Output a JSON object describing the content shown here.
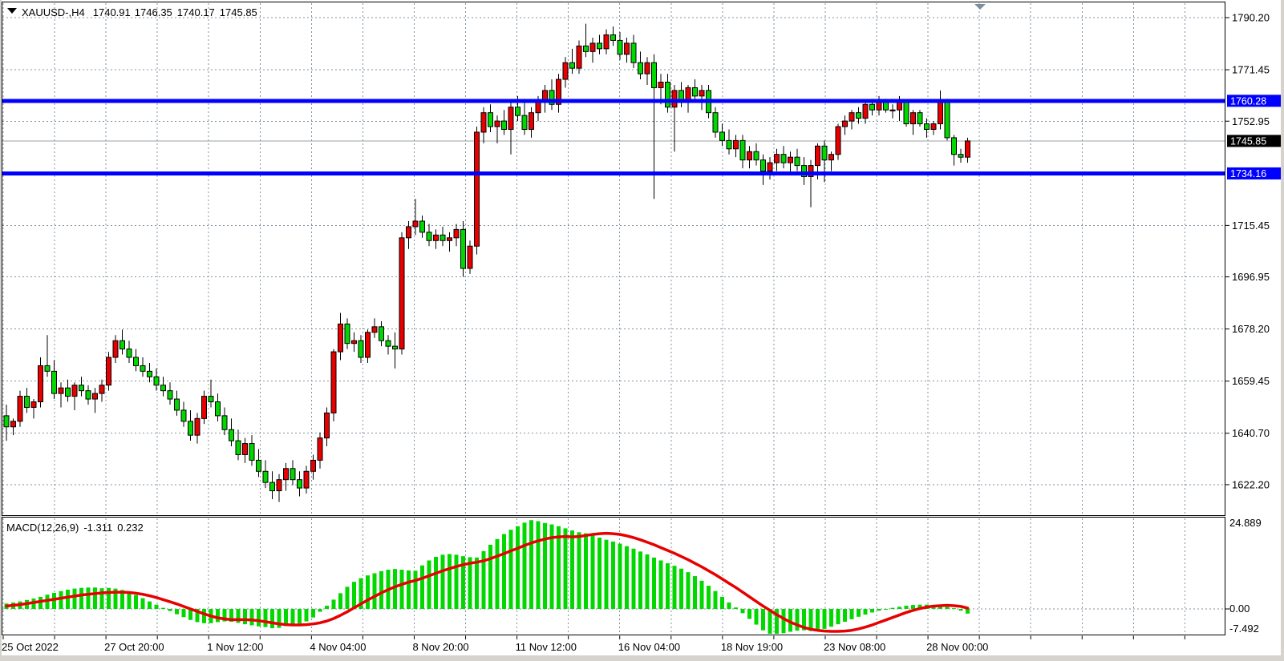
{
  "title": {
    "symbol": "XAUUSD-,H4",
    "open": "1740.91",
    "high": "1746.35",
    "low": "1740.17",
    "close": "1745.85"
  },
  "macd_label": {
    "name": "MACD(12,26,9)",
    "macd": "-1.311",
    "signal": "0.232"
  },
  "colors": {
    "bull": "#e80000",
    "bear": "#00d800",
    "wick": "#000000",
    "grid": "#8292a2",
    "hline": "#0000ff",
    "signal_line": "#e80000",
    "histogram": "#00d800",
    "current_line": "#9aa0a6",
    "badge_line_bg": "#0000ff",
    "badge_current_bg": "#000000",
    "border": "#000000",
    "chrome": "#d6d3ce",
    "shift_marker": "#7d8d9c"
  },
  "chart_data": {
    "type": "candlestick",
    "symbol": "XAUUSD-",
    "timeframe": "H4",
    "current_bar": {
      "open": 1740.91,
      "high": 1746.35,
      "low": 1740.17,
      "close": 1745.85
    },
    "y_axis_ticks": [
      "1790.20",
      "1771.45",
      "1752.95",
      "1715.45",
      "1696.95",
      "1678.20",
      "1659.45",
      "1640.70",
      "1622.20"
    ],
    "x_axis_labels": [
      "25 Oct 2022",
      "27 Oct 20:00",
      "1 Nov 12:00",
      "4 Nov 04:00",
      "8 Nov 20:00",
      "11 Nov 12:00",
      "16 Nov 04:00",
      "18 Nov 19:00",
      "23 Nov 08:00",
      "28 Nov 00:00"
    ],
    "horizontal_lines": [
      {
        "price": 1760.28,
        "label": "1760.28"
      },
      {
        "price": 1734.16,
        "label": "1734.16"
      }
    ],
    "current_price": {
      "price": 1745.85,
      "label": "1745.85"
    },
    "ylim": [
      1613,
      1793
    ],
    "grid": true,
    "candles": [
      [
        1647,
        1651,
        1638,
        1643
      ],
      [
        1643,
        1646,
        1640,
        1645
      ],
      [
        1645,
        1656,
        1643,
        1654
      ],
      [
        1654,
        1657,
        1648,
        1650
      ],
      [
        1650,
        1653,
        1646,
        1652
      ],
      [
        1652,
        1668,
        1650,
        1665
      ],
      [
        1665,
        1676,
        1661,
        1663
      ],
      [
        1663,
        1667,
        1653,
        1655
      ],
      [
        1655,
        1659,
        1650,
        1657
      ],
      [
        1657,
        1660,
        1652,
        1654
      ],
      [
        1654,
        1659,
        1649,
        1658
      ],
      [
        1658,
        1661,
        1654,
        1656
      ],
      [
        1656,
        1658,
        1651,
        1653
      ],
      [
        1653,
        1657,
        1648,
        1655
      ],
      [
        1655,
        1660,
        1652,
        1658
      ],
      [
        1658,
        1670,
        1656,
        1668
      ],
      [
        1668,
        1676,
        1666,
        1674
      ],
      [
        1674,
        1678,
        1669,
        1671
      ],
      [
        1671,
        1674,
        1666,
        1668
      ],
      [
        1668,
        1671,
        1663,
        1665
      ],
      [
        1665,
        1668,
        1661,
        1663
      ],
      [
        1663,
        1666,
        1659,
        1661
      ],
      [
        1661,
        1664,
        1656,
        1658
      ],
      [
        1658,
        1661,
        1654,
        1656
      ],
      [
        1656,
        1659,
        1651,
        1653
      ],
      [
        1653,
        1656,
        1647,
        1649
      ],
      [
        1649,
        1652,
        1643,
        1645
      ],
      [
        1645,
        1649,
        1638,
        1640
      ],
      [
        1640,
        1648,
        1637,
        1646
      ],
      [
        1646,
        1656,
        1644,
        1654
      ],
      [
        1654,
        1660,
        1650,
        1652
      ],
      [
        1652,
        1655,
        1645,
        1647
      ],
      [
        1647,
        1650,
        1640,
        1642
      ],
      [
        1642,
        1646,
        1636,
        1638
      ],
      [
        1638,
        1642,
        1631,
        1633
      ],
      [
        1633,
        1639,
        1630,
        1637
      ],
      [
        1637,
        1640,
        1629,
        1631
      ],
      [
        1631,
        1635,
        1625,
        1627
      ],
      [
        1627,
        1631,
        1621,
        1623
      ],
      [
        1623,
        1627,
        1617,
        1620
      ],
      [
        1620,
        1626,
        1616,
        1624
      ],
      [
        1624,
        1630,
        1620,
        1628
      ],
      [
        1628,
        1631,
        1622,
        1624
      ],
      [
        1624,
        1627,
        1618,
        1621
      ],
      [
        1621,
        1629,
        1619,
        1627
      ],
      [
        1627,
        1633,
        1624,
        1631
      ],
      [
        1631,
        1641,
        1628,
        1639
      ],
      [
        1639,
        1650,
        1636,
        1648
      ],
      [
        1648,
        1671,
        1645,
        1670
      ],
      [
        1670,
        1684,
        1667,
        1680
      ],
      [
        1680,
        1682,
        1671,
        1673
      ],
      [
        1673,
        1677,
        1670,
        1674
      ],
      [
        1674,
        1676,
        1666,
        1668
      ],
      [
        1668,
        1678,
        1666,
        1677
      ],
      [
        1677,
        1682,
        1675,
        1679
      ],
      [
        1679,
        1681,
        1672,
        1674
      ],
      [
        1674,
        1676,
        1669,
        1672
      ],
      [
        1672,
        1677,
        1664,
        1671
      ],
      [
        1671,
        1713,
        1669,
        1711
      ],
      [
        1711,
        1717,
        1707,
        1715
      ],
      [
        1715,
        1725,
        1712,
        1717
      ],
      [
        1717,
        1719,
        1711,
        1713
      ],
      [
        1713,
        1716,
        1708,
        1710
      ],
      [
        1710,
        1714,
        1707,
        1712
      ],
      [
        1712,
        1715,
        1708,
        1710
      ],
      [
        1710,
        1713,
        1706,
        1711
      ],
      [
        1711,
        1716,
        1708,
        1714
      ],
      [
        1714,
        1717,
        1697,
        1700
      ],
      [
        1700,
        1710,
        1698,
        1708
      ],
      [
        1708,
        1751,
        1705,
        1749
      ],
      [
        1749,
        1758,
        1745,
        1756
      ],
      [
        1756,
        1759,
        1749,
        1751
      ],
      [
        1751,
        1755,
        1745,
        1753
      ],
      [
        1753,
        1757,
        1748,
        1750
      ],
      [
        1750,
        1760,
        1741,
        1758
      ],
      [
        1758,
        1762,
        1753,
        1755
      ],
      [
        1755,
        1761,
        1748,
        1750
      ],
      [
        1750,
        1758,
        1747,
        1756
      ],
      [
        1756,
        1762,
        1753,
        1760
      ],
      [
        1760,
        1766,
        1756,
        1764
      ],
      [
        1764,
        1768,
        1757,
        1759
      ],
      [
        1759,
        1770,
        1756,
        1768
      ],
      [
        1768,
        1776,
        1765,
        1774
      ],
      [
        1774,
        1779,
        1770,
        1772
      ],
      [
        1772,
        1782,
        1770,
        1780
      ],
      [
        1780,
        1788,
        1776,
        1778
      ],
      [
        1778,
        1783,
        1774,
        1781
      ],
      [
        1781,
        1784,
        1777,
        1779
      ],
      [
        1779,
        1786,
        1777,
        1784
      ],
      [
        1784,
        1787,
        1780,
        1782
      ],
      [
        1782,
        1785,
        1775,
        1777
      ],
      [
        1777,
        1783,
        1774,
        1781
      ],
      [
        1781,
        1784,
        1772,
        1774
      ],
      [
        1774,
        1778,
        1768,
        1770
      ],
      [
        1770,
        1776,
        1766,
        1774
      ],
      [
        1774,
        1777,
        1725,
        1765
      ],
      [
        1765,
        1770,
        1759,
        1767
      ],
      [
        1767,
        1770,
        1756,
        1758
      ],
      [
        1758,
        1766,
        1742,
        1764
      ],
      [
        1764,
        1767,
        1758,
        1760
      ],
      [
        1760,
        1766,
        1756,
        1765
      ],
      [
        1765,
        1768,
        1760,
        1762
      ],
      [
        1762,
        1766,
        1757,
        1764
      ],
      [
        1764,
        1766,
        1754,
        1756
      ],
      [
        1756,
        1758,
        1747,
        1749
      ],
      [
        1749,
        1752,
        1744,
        1746
      ],
      [
        1746,
        1750,
        1741,
        1743
      ],
      [
        1743,
        1748,
        1740,
        1746
      ],
      [
        1746,
        1748,
        1736,
        1739
      ],
      [
        1739,
        1744,
        1736,
        1742
      ],
      [
        1742,
        1745,
        1737,
        1739
      ],
      [
        1739,
        1741,
        1730,
        1735
      ],
      [
        1735,
        1740,
        1732,
        1738
      ],
      [
        1738,
        1743,
        1735,
        1741
      ],
      [
        1741,
        1744,
        1736,
        1738
      ],
      [
        1738,
        1742,
        1734,
        1740
      ],
      [
        1740,
        1743,
        1735,
        1737
      ],
      [
        1737,
        1740,
        1730,
        1733
      ],
      [
        1733,
        1739,
        1722,
        1737
      ],
      [
        1737,
        1745,
        1732,
        1744
      ],
      [
        1744,
        1746,
        1731,
        1739
      ],
      [
        1739,
        1742,
        1735,
        1741
      ],
      [
        1741,
        1752,
        1739,
        1751
      ],
      [
        1751,
        1755,
        1748,
        1753
      ],
      [
        1753,
        1757,
        1750,
        1756
      ],
      [
        1756,
        1758,
        1752,
        1754
      ],
      [
        1754,
        1760,
        1752,
        1759
      ],
      [
        1759,
        1761,
        1755,
        1757
      ],
      [
        1757,
        1762,
        1755,
        1760
      ],
      [
        1760,
        1761,
        1756,
        1757
      ],
      [
        1757,
        1759,
        1754,
        1757
      ],
      [
        1757,
        1762,
        1753,
        1760
      ],
      [
        1760,
        1760,
        1751,
        1752
      ],
      [
        1752,
        1757,
        1748,
        1756
      ],
      [
        1756,
        1757,
        1751,
        1752
      ],
      [
        1752,
        1754,
        1747,
        1750
      ],
      [
        1750,
        1753,
        1748,
        1752
      ],
      [
        1752,
        1764,
        1750,
        1760
      ],
      [
        1760,
        1761,
        1746,
        1747
      ],
      [
        1747,
        1748,
        1737,
        1741
      ],
      [
        1741,
        1743,
        1738,
        1740
      ],
      [
        1740,
        1747,
        1738,
        1745.85
      ]
    ],
    "macd": {
      "label": "MACD(12,26,9)",
      "macd_value": -1.311,
      "signal_value": 0.232,
      "scale_max_label": "24.889",
      "scale_zero_label": "0.00",
      "scale_min_label": "-7.492",
      "histogram": [
        1.5,
        1.8,
        2.1,
        2.5,
        2.9,
        3.4,
        4.0,
        4.5,
        5.0,
        5.4,
        5.7,
        5.9,
        6.0,
        6.0,
        5.8,
        5.9,
        5.7,
        5.3,
        4.7,
        3.9,
        3.0,
        2.1,
        1.2,
        0.3,
        -0.6,
        -1.5,
        -2.3,
        -3.1,
        -3.7,
        -4.0,
        -4.0,
        -3.7,
        -3.5,
        -3.6,
        -3.9,
        -4.3,
        -4.6,
        -4.9,
        -5.1,
        -5.4,
        -5.3,
        -4.8,
        -4.4,
        -4.1,
        -3.5,
        -2.4,
        -0.8,
        0.9,
        2.6,
        4.4,
        6.2,
        7.6,
        8.6,
        9.4,
        10.0,
        10.6,
        11.0,
        11.2,
        11.0,
        10.8,
        10.7,
        12.2,
        13.6,
        14.6,
        15.2,
        15.4,
        15.2,
        14.8,
        14.5,
        14.4,
        16.2,
        18.0,
        19.6,
        21.0,
        22.2,
        23.2,
        24.2,
        24.889,
        24.6,
        24.1,
        23.7,
        23.2,
        22.6,
        22.0,
        21.5,
        21.2,
        20.6,
        20.0,
        19.4,
        18.9,
        18.3,
        17.6,
        16.9,
        16.1,
        15.3,
        14.4,
        13.6,
        12.8,
        12.1,
        11.3,
        10.3,
        9.2,
        7.9,
        6.5,
        5.0,
        3.4,
        1.8,
        0.4,
        -1.2,
        -2.8,
        -4.4,
        -6.0,
        -7.492,
        -7.3,
        -6.8,
        -6.4,
        -6.1,
        -6.0,
        -6.2,
        -6.0,
        -5.6,
        -5.0,
        -4.3,
        -3.6,
        -2.9,
        -2.2,
        -1.6,
        -1.0,
        -0.5,
        -0.1,
        0.3,
        0.6,
        0.9,
        1.1,
        1.2,
        1.2,
        1.1,
        0.9,
        0.6,
        0.2,
        -0.5,
        -1.311
      ],
      "signal": [
        0.8,
        1.0,
        1.2,
        1.5,
        1.8,
        2.1,
        2.4,
        2.7,
        3.0,
        3.3,
        3.6,
        3.9,
        4.1,
        4.3,
        4.5,
        4.6,
        4.7,
        4.7,
        4.6,
        4.4,
        4.1,
        3.7,
        3.2,
        2.6,
        2.0,
        1.4,
        0.7,
        0.0,
        -0.7,
        -1.4,
        -2.0,
        -2.5,
        -2.8,
        -3.0,
        -3.0,
        -3.0,
        -3.1,
        -3.3,
        -3.6,
        -3.9,
        -4.2,
        -4.4,
        -4.5,
        -4.5,
        -4.4,
        -4.2,
        -3.9,
        -3.4,
        -2.7,
        -1.8,
        -0.8,
        0.3,
        1.4,
        2.5,
        3.5,
        4.5,
        5.4,
        6.2,
        6.9,
        7.5,
        8.0,
        8.6,
        9.3,
        10.0,
        10.7,
        11.3,
        11.9,
        12.4,
        12.8,
        13.1,
        13.5,
        14.1,
        14.8,
        15.5,
        16.3,
        17.0,
        17.8,
        18.5,
        19.1,
        19.6,
        20.0,
        20.2,
        20.3,
        20.2,
        20.3,
        20.6,
        20.9,
        21.1,
        21.2,
        21.1,
        20.9,
        20.5,
        20.0,
        19.4,
        18.7,
        18.0,
        17.2,
        16.4,
        15.6,
        14.7,
        13.8,
        12.8,
        11.8,
        10.7,
        9.6,
        8.4,
        7.2,
        6.0,
        4.7,
        3.4,
        2.1,
        0.8,
        -0.4,
        -1.6,
        -2.7,
        -3.7,
        -4.5,
        -5.2,
        -5.7,
        -6.0,
        -6.2,
        -6.3,
        -6.3,
        -6.2,
        -6.0,
        -5.6,
        -5.1,
        -4.5,
        -3.8,
        -3.1,
        -2.4,
        -1.7,
        -1.0,
        -0.4,
        0.1,
        0.5,
        0.8,
        0.9,
        1.0,
        0.9,
        0.7,
        0.232
      ]
    }
  }
}
